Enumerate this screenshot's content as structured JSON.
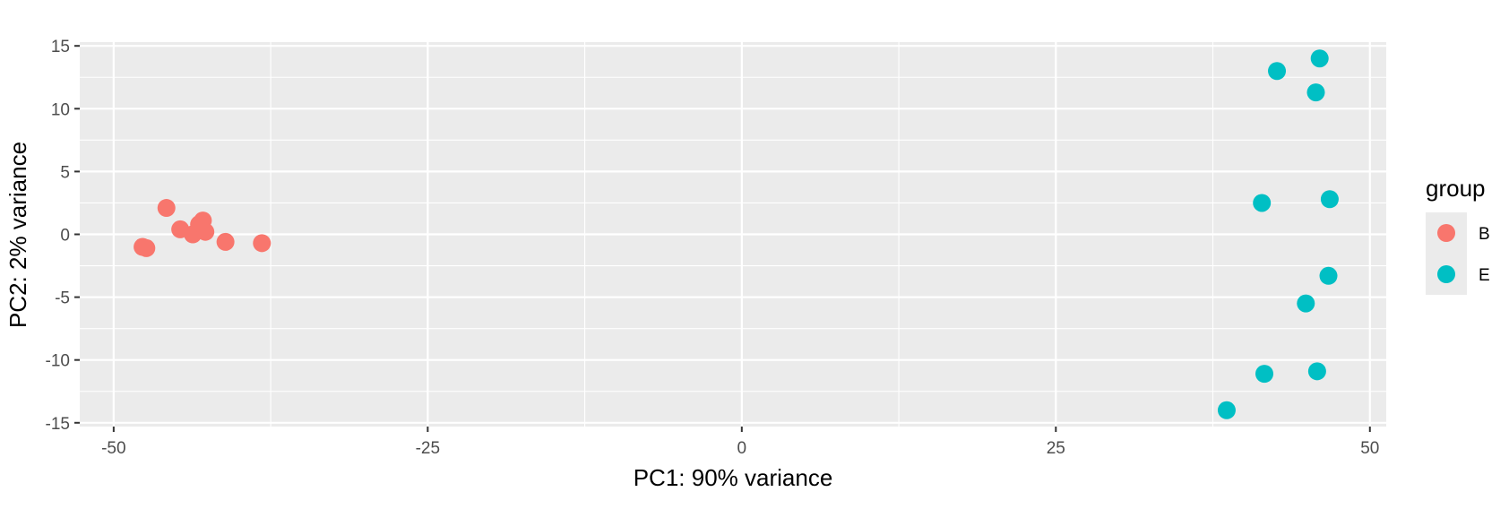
{
  "chart_data": {
    "type": "scatter",
    "title": "",
    "xlabel": "PC1: 90% variance",
    "ylabel": "PC2: 2% variance",
    "xlim": [
      -52.7,
      51.3
    ],
    "ylim": [
      -15.3,
      15.3
    ],
    "x_ticks": [
      -50,
      -25,
      0,
      25,
      50
    ],
    "x_tick_labels": [
      "-50",
      "-25",
      "0",
      "25",
      "50"
    ],
    "y_ticks": [
      -15,
      -10,
      -5,
      0,
      5,
      10,
      15
    ],
    "y_tick_labels": [
      "-15",
      "-10",
      "-5",
      "0",
      "5",
      "10",
      "15"
    ],
    "grid": true,
    "legend": {
      "title": "group",
      "placement": "right"
    },
    "series": [
      {
        "name": "B",
        "color": "#f8766d",
        "points": [
          {
            "x": -47.7,
            "y": -1.0
          },
          {
            "x": -47.4,
            "y": -1.1
          },
          {
            "x": -45.8,
            "y": 2.1
          },
          {
            "x": -44.7,
            "y": 0.4
          },
          {
            "x": -43.7,
            "y": 0.0
          },
          {
            "x": -43.2,
            "y": 0.8
          },
          {
            "x": -42.9,
            "y": 1.1
          },
          {
            "x": -42.7,
            "y": 0.2
          },
          {
            "x": -41.1,
            "y": -0.6
          },
          {
            "x": -38.2,
            "y": -0.7
          }
        ]
      },
      {
        "name": "E",
        "color": "#00bfc4",
        "points": [
          {
            "x": 42.6,
            "y": 13.0
          },
          {
            "x": 46.0,
            "y": 14.0
          },
          {
            "x": 45.7,
            "y": 11.3
          },
          {
            "x": 41.4,
            "y": 2.5
          },
          {
            "x": 46.8,
            "y": 2.8
          },
          {
            "x": 46.7,
            "y": -3.3
          },
          {
            "x": 44.9,
            "y": -5.5
          },
          {
            "x": 41.6,
            "y": -11.1
          },
          {
            "x": 45.8,
            "y": -10.9
          },
          {
            "x": 38.6,
            "y": -14.0
          }
        ]
      }
    ]
  }
}
